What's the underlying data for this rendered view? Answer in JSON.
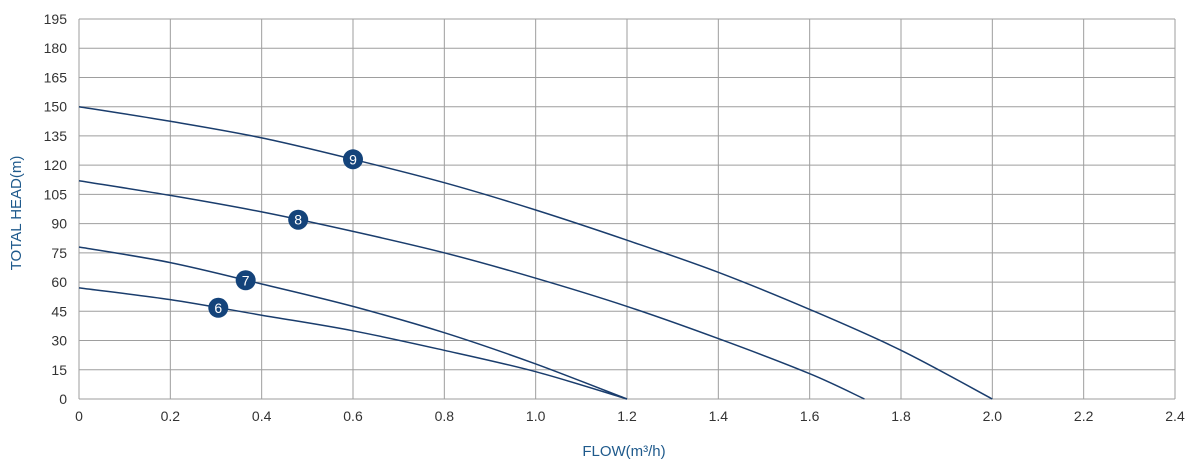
{
  "chart_data": {
    "type": "line",
    "title": "",
    "xlabel": "FLOW(m³/h)",
    "ylabel": "TOTAL HEAD(m)",
    "xlim": [
      0,
      2.4
    ],
    "ylim": [
      0,
      195
    ],
    "x_ticks": [
      "0",
      "0.2",
      "0.4",
      "0.6",
      "0.8",
      "1.0",
      "1.2",
      "1.4",
      "1.6",
      "1.8",
      "2.0",
      "2.2",
      "2.4"
    ],
    "y_ticks": [
      "0",
      "15",
      "30",
      "45",
      "60",
      "75",
      "90",
      "105",
      "120",
      "135",
      "150",
      "165",
      "180",
      "195"
    ],
    "grid": true,
    "colors": {
      "curve": "#1a3d6d",
      "marker": "#14437a",
      "grid": "#9e9e9e",
      "axis_title": "#1f5a8c"
    },
    "series": [
      {
        "marker_label": "9",
        "marker_x": 0.6,
        "points": [
          [
            0,
            150
          ],
          [
            0.2,
            142.5
          ],
          [
            0.4,
            134
          ],
          [
            0.6,
            123
          ],
          [
            0.8,
            111
          ],
          [
            1.0,
            97
          ],
          [
            1.2,
            81.5
          ],
          [
            1.4,
            65
          ],
          [
            1.6,
            46
          ],
          [
            1.8,
            25
          ],
          [
            2.0,
            0
          ]
        ]
      },
      {
        "marker_label": "8",
        "marker_x": 0.48,
        "points": [
          [
            0,
            112
          ],
          [
            0.2,
            104.5
          ],
          [
            0.4,
            96
          ],
          [
            0.6,
            86
          ],
          [
            0.8,
            75
          ],
          [
            1.0,
            62
          ],
          [
            1.2,
            47.5
          ],
          [
            1.4,
            31
          ],
          [
            1.6,
            13
          ],
          [
            1.72,
            0
          ]
        ]
      },
      {
        "marker_label": "7",
        "marker_x": 0.365,
        "points": [
          [
            0,
            78
          ],
          [
            0.2,
            70
          ],
          [
            0.4,
            59
          ],
          [
            0.6,
            47.5
          ],
          [
            0.8,
            34
          ],
          [
            1.0,
            18
          ],
          [
            1.2,
            0
          ]
        ]
      },
      {
        "marker_label": "6",
        "marker_x": 0.305,
        "points": [
          [
            0,
            57
          ],
          [
            0.2,
            51
          ],
          [
            0.4,
            43
          ],
          [
            0.6,
            35
          ],
          [
            0.8,
            25
          ],
          [
            1.0,
            14
          ],
          [
            1.2,
            0
          ]
        ]
      }
    ]
  }
}
